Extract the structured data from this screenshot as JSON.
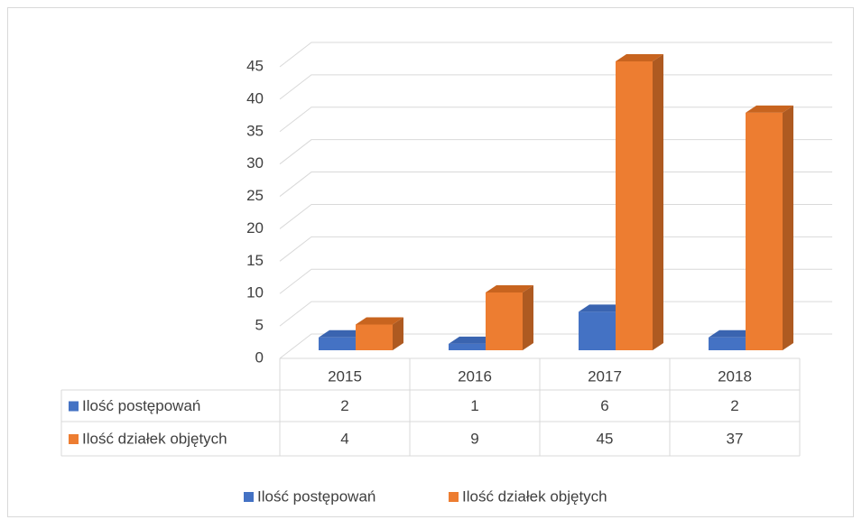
{
  "chart_data": {
    "type": "bar3d",
    "categories": [
      "2015",
      "2016",
      "2017",
      "2018"
    ],
    "series": [
      {
        "name": "Ilość postępowań",
        "color": "#4472c4",
        "values": [
          2,
          1,
          6,
          2
        ]
      },
      {
        "name": "Ilość działek objętych",
        "color": "#ed7d31",
        "values": [
          4,
          9,
          45,
          37
        ]
      }
    ],
    "ylim": [
      0,
      45
    ],
    "yticks": [
      0,
      5,
      10,
      15,
      20,
      25,
      30,
      35,
      40,
      45
    ],
    "grid": true,
    "data_table": true,
    "legend": "bottom"
  }
}
